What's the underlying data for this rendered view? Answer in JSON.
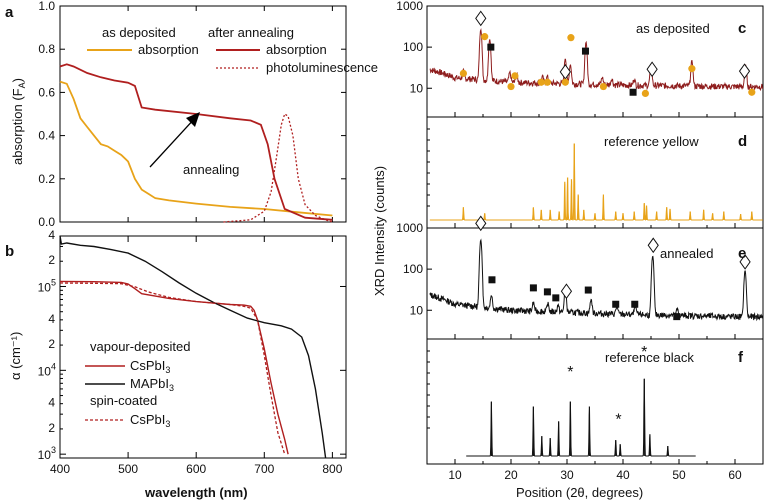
{
  "colors": {
    "yellow": "#E8A319",
    "red": "#B01F1F",
    "black": "#111111"
  },
  "chart_data": [
    {
      "panel": "a",
      "type": "line",
      "xlim": [
        400,
        820
      ],
      "ylim": [
        0.0,
        1.0
      ],
      "ylabel": "absorption (F_A)",
      "ylabel_main": "absorption (F",
      "ylabel_sub": "A",
      "ylabel_end": ")",
      "yticks": [
        "0.0",
        "0.2",
        "0.4",
        "0.6",
        "0.8",
        "1.0"
      ],
      "legend": {
        "as_deposited": "as deposited",
        "after_annealing": "after annealing",
        "absorption1": "absorption",
        "absorption2": "absorption",
        "pl": "photoluminescence"
      },
      "annotation": "annealing",
      "series": [
        {
          "name": "as deposited absorption",
          "color": "#E8A319",
          "x": [
            400,
            410,
            420,
            430,
            440,
            450,
            460,
            470,
            480,
            490,
            500,
            510,
            520,
            530,
            540,
            560,
            600,
            650,
            700,
            750,
            800
          ],
          "y": [
            0.65,
            0.64,
            0.57,
            0.48,
            0.44,
            0.4,
            0.36,
            0.35,
            0.33,
            0.31,
            0.28,
            0.2,
            0.15,
            0.13,
            0.11,
            0.1,
            0.085,
            0.07,
            0.06,
            0.045,
            0.03
          ]
        },
        {
          "name": "after annealing absorption",
          "color": "#B01F1F",
          "x": [
            400,
            410,
            420,
            440,
            460,
            480,
            500,
            510,
            520,
            540,
            600,
            650,
            680,
            695,
            705,
            715,
            730,
            760,
            800
          ],
          "y": [
            0.72,
            0.73,
            0.72,
            0.69,
            0.67,
            0.655,
            0.645,
            0.63,
            0.53,
            0.52,
            0.5,
            0.48,
            0.47,
            0.45,
            0.36,
            0.2,
            0.06,
            0.02,
            0.01
          ]
        },
        {
          "name": "photoluminescence",
          "color": "#B01F1F",
          "dashed": true,
          "x": [
            640,
            680,
            700,
            710,
            718,
            725,
            730,
            735,
            742,
            750,
            760,
            775,
            790,
            800
          ],
          "y": [
            0.0,
            0.01,
            0.05,
            0.14,
            0.3,
            0.45,
            0.5,
            0.49,
            0.4,
            0.2,
            0.08,
            0.03,
            0.01,
            0.0
          ]
        }
      ]
    },
    {
      "panel": "b",
      "type": "line",
      "xlim": [
        400,
        820
      ],
      "ylim_log": [
        900,
        400000
      ],
      "xlabel": "wavelength (nm)",
      "xticks": [
        "400",
        "500",
        "600",
        "700",
        "800"
      ],
      "ylabel": "α (cm⁻¹)",
      "ymajor": [
        {
          "v": 1000,
          "mant": "10",
          "exp": "3"
        },
        {
          "v": 10000,
          "mant": "10",
          "exp": "4"
        },
        {
          "v": 100000,
          "mant": "10",
          "exp": "5"
        }
      ],
      "yminor": [
        {
          "v": 2000,
          "t": "2"
        },
        {
          "v": 4000,
          "t": "4"
        },
        {
          "v": 20000,
          "t": "2"
        },
        {
          "v": 40000,
          "t": "4"
        },
        {
          "v": 200000,
          "t": "2"
        },
        {
          "v": 400000,
          "t": "4"
        }
      ],
      "legend": {
        "vapour": "vapour-deposited",
        "cspbi3_a": "CsPbI",
        "mapbi3": "MAPbI",
        "spin": "spin-coated",
        "cspbi3_b": "CsPbI",
        "sub3": "3"
      },
      "series": [
        {
          "name": "vapour-deposited CsPbI3",
          "color": "#B01F1F",
          "x": [
            400,
            450,
            490,
            500,
            510,
            520,
            560,
            600,
            650,
            670,
            680,
            685,
            690,
            700,
            710,
            720,
            730,
            735
          ],
          "y": [
            115000,
            114000,
            112000,
            107000,
            94000,
            82000,
            72000,
            66000,
            61000,
            60000,
            58000,
            52000,
            40000,
            18000,
            7000,
            3000,
            1500,
            1000
          ]
        },
        {
          "name": "MAPbI3",
          "color": "#111111",
          "x": [
            400,
            402,
            410,
            430,
            450,
            475,
            500,
            525,
            550,
            575,
            600,
            625,
            650,
            675,
            700,
            725,
            740,
            755,
            765,
            775,
            785,
            790
          ],
          "y": [
            400000,
            320000,
            330000,
            310000,
            300000,
            275000,
            250000,
            200000,
            150000,
            110000,
            83000,
            65000,
            52000,
            42000,
            37000,
            34000,
            31000,
            25000,
            15000,
            6000,
            1800,
            900
          ]
        },
        {
          "name": "spin-coated CsPbI3",
          "color": "#B01F1F",
          "dashed": true,
          "x": [
            400,
            450,
            490,
            510,
            530,
            560,
            600,
            650,
            670,
            680,
            690,
            700,
            710,
            720,
            730
          ],
          "y": [
            110000,
            109000,
            108000,
            99000,
            86000,
            74000,
            66000,
            61000,
            58000,
            55000,
            40000,
            15000,
            5000,
            1800,
            1000
          ]
        }
      ]
    },
    {
      "panel": "c",
      "type": "line",
      "xlim": [
        5,
        65
      ],
      "ylim_log": [
        2,
        1000
      ],
      "label": "as deposited",
      "letter": "c",
      "yticks": [
        {
          "v": 10,
          "t": "10"
        },
        {
          "v": 100,
          "t": "100"
        },
        {
          "v": 1000,
          "t": "1000"
        }
      ],
      "baseline": [
        [
          5,
          30
        ],
        [
          10,
          18
        ],
        [
          20,
          14
        ],
        [
          40,
          12
        ],
        [
          60,
          11
        ],
        [
          65,
          11
        ]
      ],
      "peaks": [
        [
          14.6,
          250
        ],
        [
          16.2,
          140
        ],
        [
          11.5,
          9
        ],
        [
          19.8,
          10
        ],
        [
          21,
          8
        ],
        [
          25.6,
          6
        ],
        [
          26.5,
          6
        ],
        [
          29.7,
          40
        ],
        [
          30.6,
          25
        ],
        [
          33.4,
          120
        ],
        [
          36.3,
          6
        ],
        [
          38,
          5
        ],
        [
          42,
          5
        ],
        [
          45,
          25
        ],
        [
          52.3,
          35
        ],
        [
          61.9,
          25
        ]
      ],
      "markers": [
        {
          "kind": "diamond",
          "x": 14.6,
          "y": 500
        },
        {
          "kind": "dot",
          "x": 15.3,
          "y": 180
        },
        {
          "kind": "square",
          "x": 16.4,
          "y": 100
        },
        {
          "kind": "dot",
          "x": 11.5,
          "y": 23
        },
        {
          "kind": "dot",
          "x": 20.7,
          "y": 20
        },
        {
          "kind": "dot",
          "x": 20.0,
          "y": 11
        },
        {
          "kind": "dot",
          "x": 25.4,
          "y": 14
        },
        {
          "kind": "dot",
          "x": 26.5,
          "y": 14
        },
        {
          "kind": "diamond",
          "x": 29.7,
          "y": 25
        },
        {
          "kind": "dot",
          "x": 30.7,
          "y": 170
        },
        {
          "kind": "dot",
          "x": 29.7,
          "y": 14
        },
        {
          "kind": "square",
          "x": 33.3,
          "y": 80
        },
        {
          "kind": "dot",
          "x": 36.5,
          "y": 11
        },
        {
          "kind": "square",
          "x": 41.8,
          "y": 8
        },
        {
          "kind": "dot",
          "x": 44.0,
          "y": 7.5
        },
        {
          "kind": "diamond",
          "x": 45.2,
          "y": 29
        },
        {
          "kind": "dot",
          "x": 52.3,
          "y": 30
        },
        {
          "kind": "diamond",
          "x": 61.7,
          "y": 26
        },
        {
          "kind": "dot",
          "x": 63.0,
          "y": 8
        }
      ]
    },
    {
      "panel": "d",
      "type": "bar",
      "xlim": [
        5,
        65
      ],
      "label": "reference yellow",
      "letter": "d",
      "peaks": [
        [
          11.5,
          0.15
        ],
        [
          15.3,
          0.08
        ],
        [
          24,
          0.15
        ],
        [
          25.4,
          0.12
        ],
        [
          27,
          0.12
        ],
        [
          28.6,
          0.1
        ],
        [
          29.6,
          0.45
        ],
        [
          30.1,
          0.5
        ],
        [
          30.8,
          0.48
        ],
        [
          31.3,
          0.9
        ],
        [
          32,
          0.3
        ],
        [
          33,
          0.12
        ],
        [
          35,
          0.08
        ],
        [
          36.5,
          0.3
        ],
        [
          38.7,
          0.1
        ],
        [
          40,
          0.08
        ],
        [
          42,
          0.1
        ],
        [
          43.8,
          0.2
        ],
        [
          44.2,
          0.17
        ],
        [
          46,
          0.1
        ],
        [
          47.8,
          0.15
        ],
        [
          48.4,
          0.13
        ],
        [
          52,
          0.1
        ],
        [
          54.4,
          0.12
        ],
        [
          56,
          0.08
        ],
        [
          58,
          0.1
        ],
        [
          61,
          0.07
        ],
        [
          63,
          0.1
        ]
      ]
    },
    {
      "panel": "e",
      "type": "line",
      "xlim": [
        5,
        65
      ],
      "ylim_log": [
        2,
        1000
      ],
      "label": "annealed",
      "letter": "e",
      "yticks": [
        {
          "v": 10,
          "t": "10"
        },
        {
          "v": 100,
          "t": "100"
        },
        {
          "v": 1000,
          "t": "1000"
        }
      ],
      "baseline": [
        [
          5,
          25
        ],
        [
          10,
          14
        ],
        [
          20,
          10
        ],
        [
          40,
          8
        ],
        [
          60,
          7
        ],
        [
          65,
          7
        ]
      ],
      "peaks": [
        [
          14.6,
          500
        ],
        [
          16.5,
          12
        ],
        [
          24,
          6
        ],
        [
          26.6,
          5
        ],
        [
          28.4,
          4
        ],
        [
          29.7,
          25
        ],
        [
          34.3,
          10
        ],
        [
          38.9,
          4
        ],
        [
          42.2,
          5
        ],
        [
          45.3,
          200
        ],
        [
          49.7,
          3
        ],
        [
          61.8,
          85
        ]
      ],
      "markers": [
        {
          "kind": "diamond",
          "x": 14.6,
          "y": 1300
        },
        {
          "kind": "square",
          "x": 16.6,
          "y": 55
        },
        {
          "kind": "square",
          "x": 24.0,
          "y": 35
        },
        {
          "kind": "square",
          "x": 26.5,
          "y": 28
        },
        {
          "kind": "square",
          "x": 28.0,
          "y": 20
        },
        {
          "kind": "diamond",
          "x": 29.9,
          "y": 29
        },
        {
          "kind": "square",
          "x": 33.8,
          "y": 31
        },
        {
          "kind": "square",
          "x": 38.7,
          "y": 14
        },
        {
          "kind": "square",
          "x": 42.1,
          "y": 14
        },
        {
          "kind": "diamond",
          "x": 45.4,
          "y": 380
        },
        {
          "kind": "square",
          "x": 49.6,
          "y": 7
        },
        {
          "kind": "diamond",
          "x": 61.8,
          "y": 150
        }
      ]
    },
    {
      "panel": "f",
      "type": "bar",
      "xlim": [
        5,
        65
      ],
      "label": "reference black",
      "letter": "f",
      "range": [
        12,
        53
      ],
      "peaks": [
        [
          16.5,
          0.55
        ],
        [
          24,
          0.5
        ],
        [
          25.5,
          0.2
        ],
        [
          27,
          0.18
        ],
        [
          28.5,
          0.35
        ],
        [
          30.6,
          0.55
        ],
        [
          34,
          0.5
        ],
        [
          38.7,
          0.16
        ],
        [
          39.5,
          0.12
        ],
        [
          43.8,
          0.78
        ],
        [
          44.8,
          0.22
        ],
        [
          48,
          0.1
        ]
      ],
      "stars": [
        [
          30.6,
          0.78
        ],
        [
          39.2,
          0.3
        ],
        [
          43.8,
          0.98
        ]
      ]
    }
  ],
  "right_axis": {
    "ylabel": "XRD Intensity (counts)",
    "xlabel": "Position (2θ, degrees)",
    "xticks": [
      "10",
      "20",
      "30",
      "40",
      "50",
      "60"
    ]
  },
  "panel_letters": {
    "a": "a",
    "b": "b"
  }
}
